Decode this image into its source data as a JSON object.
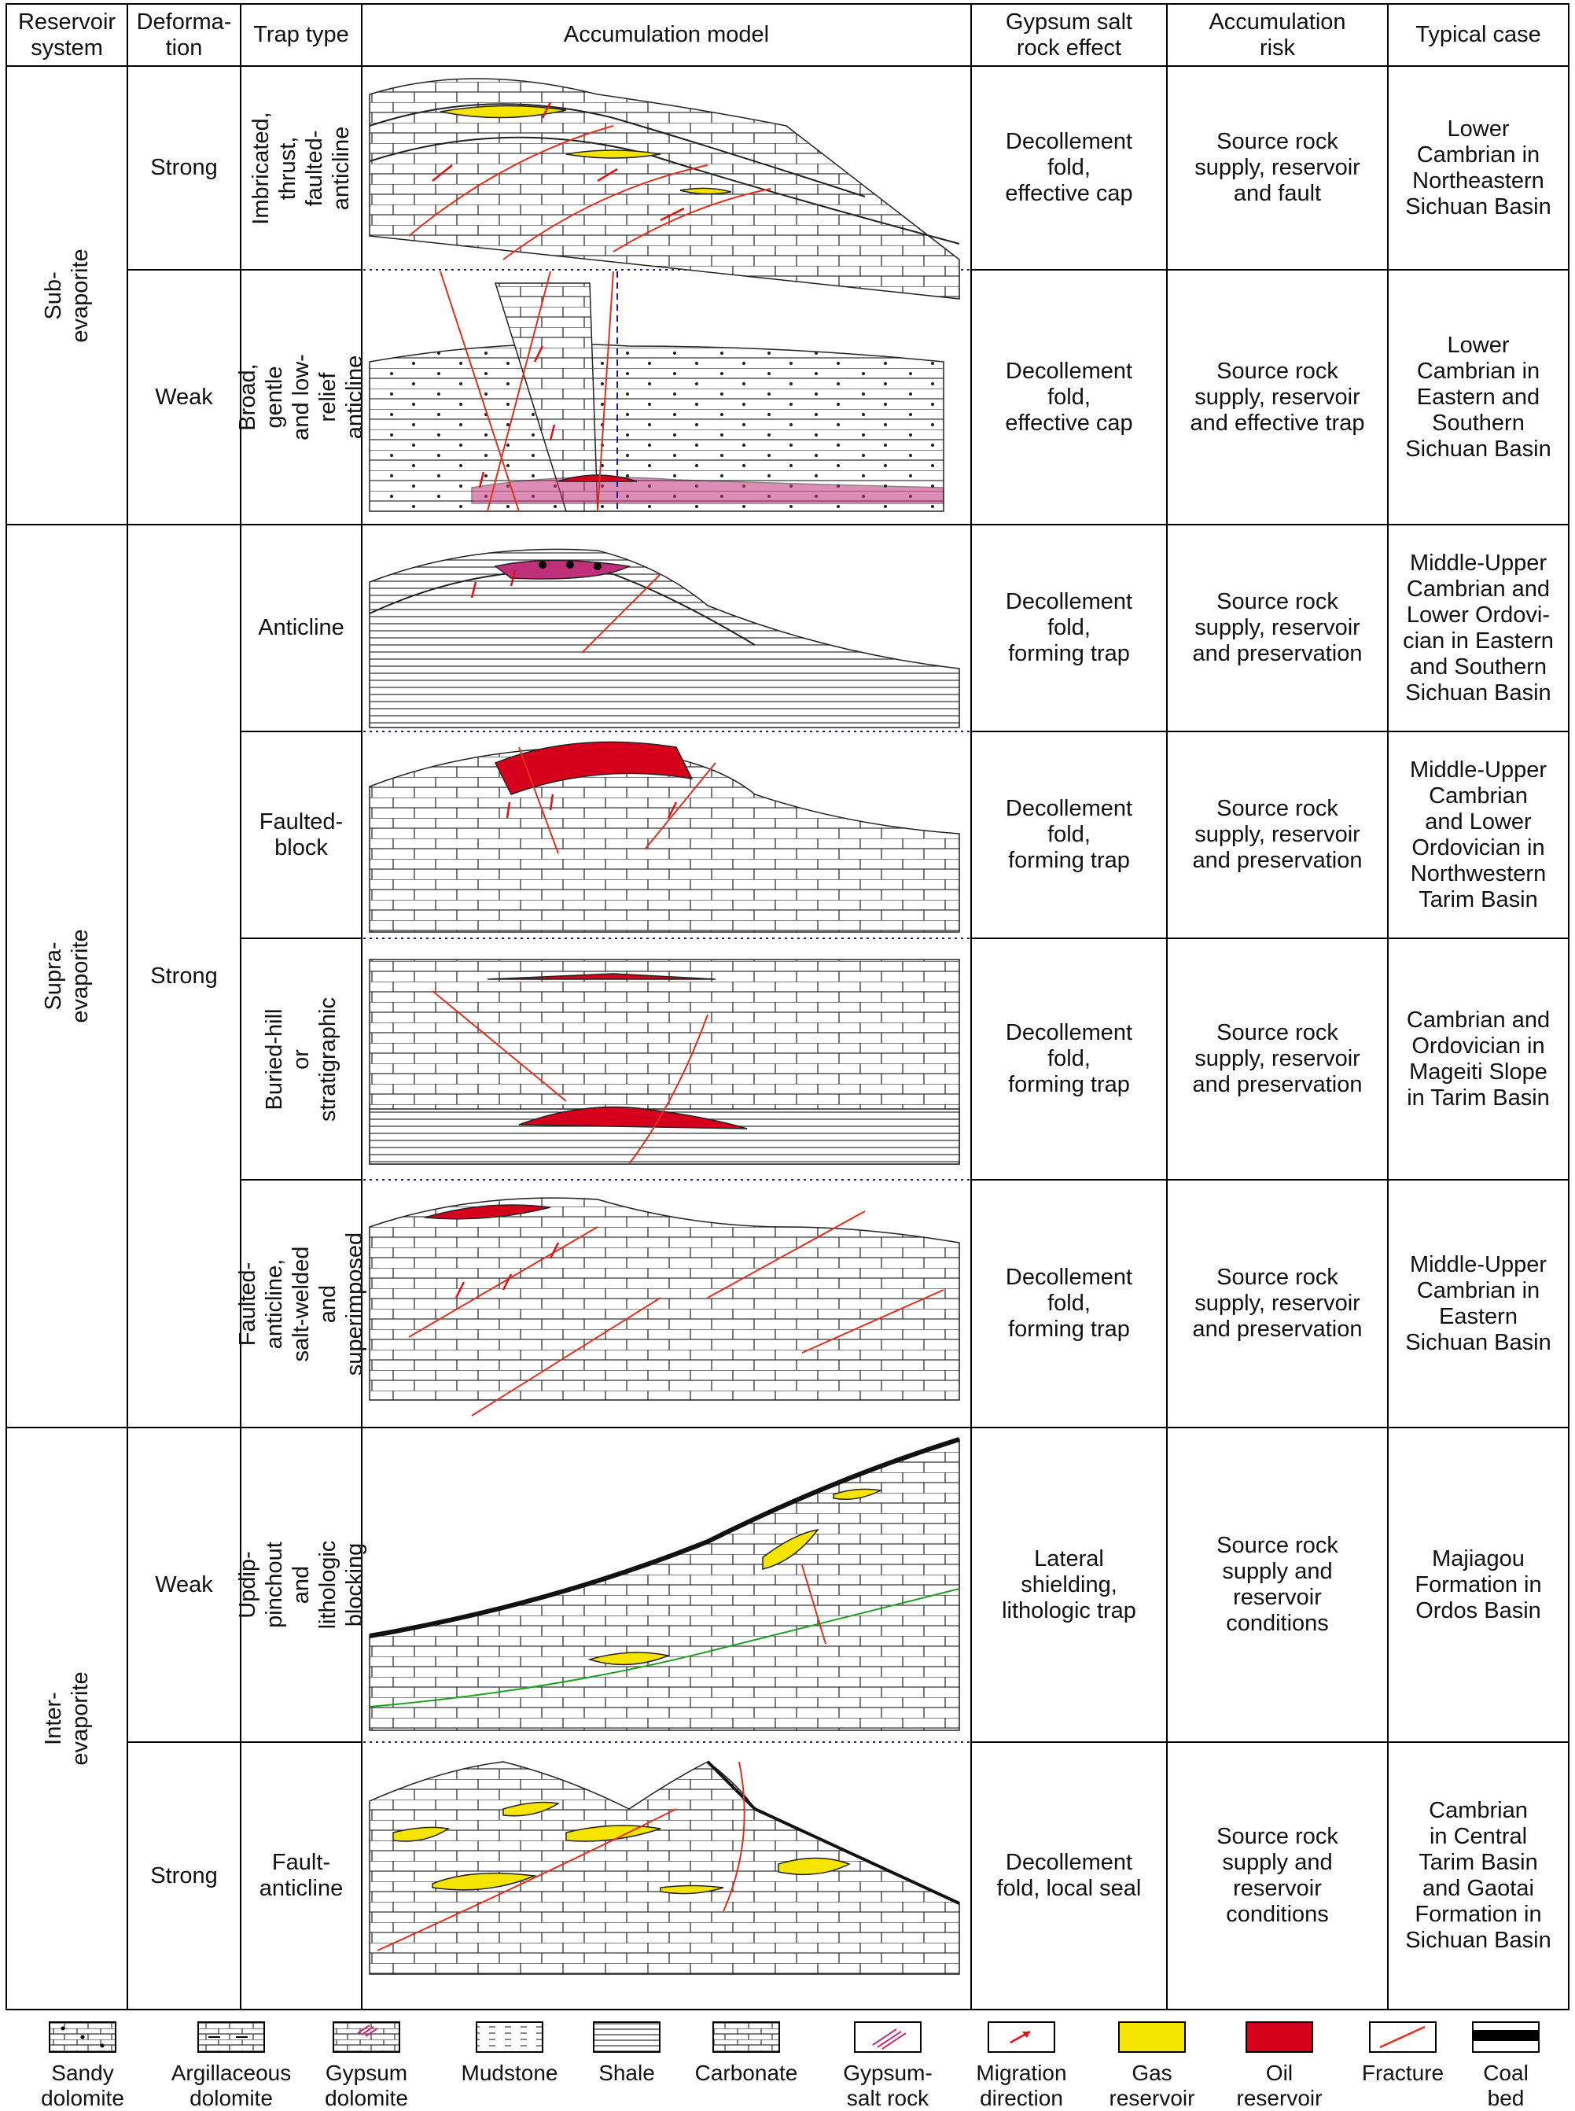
{
  "headers": {
    "reservoir_system": "Reservoir\nsystem",
    "deformation": "Deforma-\ntion",
    "trap_type": "Trap type",
    "accumulation_model": "Accumulation model",
    "gypsum_effect": "Gypsum salt\nrock effect",
    "accumulation_risk": "Accumulation\nrisk",
    "typical_case": "Typical case"
  },
  "systems": [
    "Sub-evaporite",
    "Supra-evaporite",
    "Inter-evaporite"
  ],
  "rows": [
    {
      "deformation": "Strong",
      "trap": "Imbricated,\nthrust, faulted-\nanticline",
      "effect": "Decollement\nfold,\neffective cap",
      "risk": "Source rock\nsupply, reservoir\nand fault",
      "case": "Lower\nCambrian in\nNortheastern\nSichuan Basin"
    },
    {
      "deformation": "Weak",
      "trap": "Broad, gentle\nand low-relief\nanticline",
      "effect": "Decollement\nfold,\neffective cap",
      "risk": "Source rock\nsupply, reservoir\nand effective trap",
      "case": "Lower\nCambrian in\nEastern and\nSouthern\nSichuan Basin"
    },
    {
      "deformation": "Strong",
      "trap": "Anticline",
      "effect": "Decollement\nfold,\nforming trap",
      "risk": "Source rock\nsupply, reservoir\nand preservation",
      "case": "Middle-Upper\nCambrian and\nLower Ordovi-\ncian in Eastern\nand Southern\nSichuan Basin"
    },
    {
      "deformation": "",
      "trap": "Faulted-\nblock",
      "effect": "Decollement\nfold,\nforming trap",
      "risk": "Source rock\nsupply, reservoir\nand preservation",
      "case": "Middle-Upper\nCambrian\nand Lower\nOrdovician in\nNorthwestern\nTarim Basin"
    },
    {
      "deformation": "",
      "trap": "Buried-hill or\nstratigraphic",
      "effect": "Decollement\nfold,\nforming trap",
      "risk": "Source rock\nsupply, reservoir\nand preservation",
      "case": "Cambrian and\nOrdovician in\nMageiti Slope\nin Tarim Basin"
    },
    {
      "deformation": "",
      "trap": "Faulted-anticline,\nsalt-welded and\nsuperimposed",
      "effect": "Decollement\nfold,\nforming trap",
      "risk": "Source rock\nsupply, reservoir\nand preservation",
      "case": "Middle-Upper\nCambrian in\nEastern\nSichuan Basin"
    },
    {
      "deformation": "Weak",
      "trap": "Updip-pinchout and\nlithologic blocking",
      "effect": "Lateral\nshielding,\nlithologic trap",
      "risk": "Source rock\nsupply and\nreservoir\nconditions",
      "case": "Majiagou\nFormation in\nOrdos Basin"
    },
    {
      "deformation": "Strong",
      "trap": "Fault-\nanticline",
      "effect": "Decollement\nfold, local seal",
      "risk": "Source rock\nsupply and\nreservoir\nconditions",
      "case": "Cambrian\nin Central\nTarim Basin\nand Gaotai\nFormation in\nSichuan Basin"
    }
  ],
  "legend": [
    {
      "label": "Sandy\ndolomite",
      "icon": "sandy-dolomite-swatch"
    },
    {
      "label": "Argillaceous\ndolomite",
      "icon": "argillaceous-dolomite-swatch"
    },
    {
      "label": "Gypsum\ndolomite",
      "icon": "gypsum-dolomite-swatch"
    },
    {
      "label": "Mudstone",
      "icon": "mudstone-swatch"
    },
    {
      "label": "Shale",
      "icon": "shale-swatch"
    },
    {
      "label": "Carbonate",
      "icon": "carbonate-swatch"
    },
    {
      "label": "Gypsum-\nsalt rock",
      "icon": "gypsum-salt-swatch"
    },
    {
      "label": "Migration\ndirection",
      "icon": "migration-arrow-swatch"
    },
    {
      "label": "Gas\nreservoir",
      "icon": "gas-swatch"
    },
    {
      "label": "Oil\nreservoir",
      "icon": "oil-swatch"
    },
    {
      "label": "Fracture",
      "icon": "fracture-swatch"
    },
    {
      "label": "Coal\nbed",
      "icon": "coal-swatch"
    }
  ],
  "colors": {
    "gas": "#f5e400",
    "oil": "#d6001c",
    "fracture": "#e0301e",
    "gypsum": "#c0307a",
    "arrow": "#e01010",
    "dotted": "#1a1aa0"
  }
}
